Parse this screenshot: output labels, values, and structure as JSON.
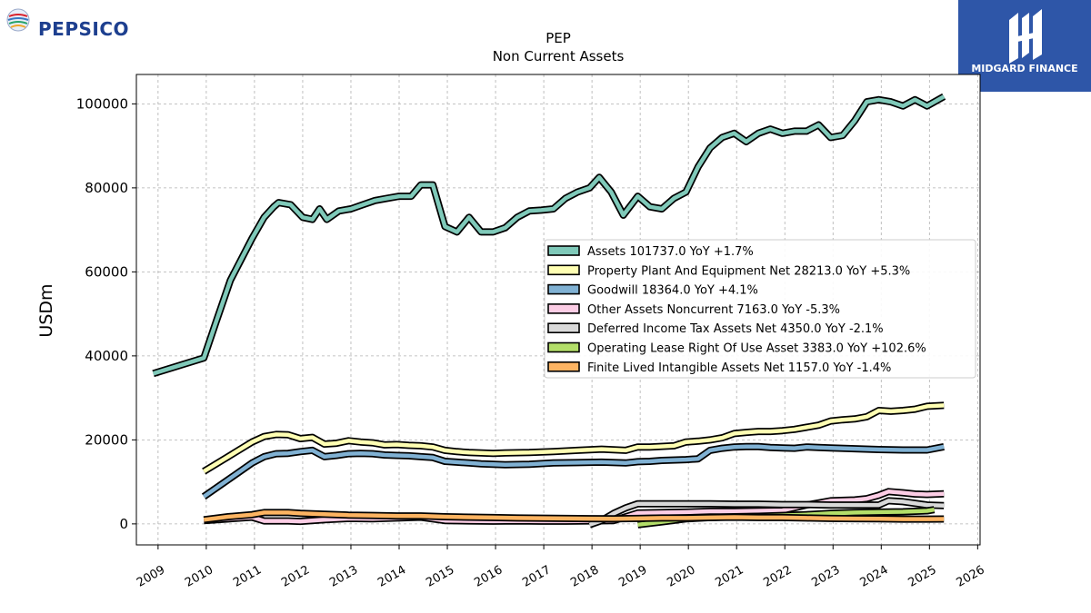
{
  "logos": {
    "left_brand": "PEPSICO",
    "right_brand": "MIDGARD FINANCE"
  },
  "chart_data": {
    "type": "line",
    "title": "PEP",
    "subtitle": "Non Current  Assets",
    "xlabel": "",
    "ylabel": "USDm",
    "xlim": [
      2008.55,
      2026.05
    ],
    "ylim": [
      -5000,
      107000
    ],
    "x_ticks": [
      2009,
      2010,
      2011,
      2012,
      2013,
      2014,
      2015,
      2016,
      2017,
      2018,
      2019,
      2020,
      2021,
      2022,
      2023,
      2024,
      2025,
      2026
    ],
    "y_ticks": [
      0,
      20000,
      40000,
      60000,
      80000,
      100000
    ],
    "y_tick_labels": [
      "0",
      "20000",
      "40000",
      "60000",
      "80000",
      "100000"
    ],
    "grid": true,
    "legend_position": "center-right",
    "series": [
      {
        "name": "Assets  101737.0 YoY +1.7%",
        "color": "#7fc9b9",
        "points": [
          [
            2008.9,
            35800
          ],
          [
            2009.95,
            39500
          ],
          [
            2010.2,
            48000
          ],
          [
            2010.5,
            58000
          ],
          [
            2010.95,
            68000
          ],
          [
            2011.2,
            73000
          ],
          [
            2011.4,
            75500
          ],
          [
            2011.5,
            76500
          ],
          [
            2011.75,
            76000
          ],
          [
            2012.0,
            73000
          ],
          [
            2012.2,
            72500
          ],
          [
            2012.35,
            75000
          ],
          [
            2012.5,
            72500
          ],
          [
            2012.75,
            74500
          ],
          [
            2013.0,
            75000
          ],
          [
            2013.25,
            76000
          ],
          [
            2013.5,
            77000
          ],
          [
            2013.75,
            77500
          ],
          [
            2014.0,
            78000
          ],
          [
            2014.25,
            78000
          ],
          [
            2014.45,
            80700
          ],
          [
            2014.7,
            80700
          ],
          [
            2014.95,
            70800
          ],
          [
            2015.2,
            69500
          ],
          [
            2015.45,
            73000
          ],
          [
            2015.7,
            69500
          ],
          [
            2015.95,
            69500
          ],
          [
            2016.2,
            70500
          ],
          [
            2016.45,
            73000
          ],
          [
            2016.7,
            74500
          ],
          [
            2016.95,
            74700
          ],
          [
            2017.2,
            75000
          ],
          [
            2017.45,
            77500
          ],
          [
            2017.7,
            79000
          ],
          [
            2017.95,
            80000
          ],
          [
            2018.15,
            82500
          ],
          [
            2018.4,
            79000
          ],
          [
            2018.65,
            73500
          ],
          [
            2018.95,
            78000
          ],
          [
            2019.2,
            75500
          ],
          [
            2019.45,
            75000
          ],
          [
            2019.7,
            77500
          ],
          [
            2019.95,
            79000
          ],
          [
            2020.2,
            85000
          ],
          [
            2020.45,
            89500
          ],
          [
            2020.7,
            92000
          ],
          [
            2020.95,
            93000
          ],
          [
            2021.2,
            91000
          ],
          [
            2021.45,
            93000
          ],
          [
            2021.7,
            94000
          ],
          [
            2021.95,
            93000
          ],
          [
            2022.2,
            93500
          ],
          [
            2022.45,
            93500
          ],
          [
            2022.7,
            95000
          ],
          [
            2022.95,
            92000
          ],
          [
            2023.2,
            92500
          ],
          [
            2023.45,
            96000
          ],
          [
            2023.7,
            100500
          ],
          [
            2023.95,
            101000
          ],
          [
            2024.2,
            100500
          ],
          [
            2024.45,
            99500
          ],
          [
            2024.7,
            101000
          ],
          [
            2024.95,
            99500
          ],
          [
            2025.3,
            101737
          ]
        ]
      },
      {
        "name": "Property Plant And Equipment Net  28213.0 YoY +5.3%",
        "color": "#ffffb3",
        "points": [
          [
            2009.95,
            12500
          ],
          [
            2010.45,
            16000
          ],
          [
            2010.95,
            19500
          ],
          [
            2011.2,
            20800
          ],
          [
            2011.45,
            21300
          ],
          [
            2011.7,
            21200
          ],
          [
            2011.95,
            20300
          ],
          [
            2012.2,
            20600
          ],
          [
            2012.45,
            19000
          ],
          [
            2012.7,
            19200
          ],
          [
            2012.95,
            19800
          ],
          [
            2013.2,
            19500
          ],
          [
            2013.45,
            19300
          ],
          [
            2013.7,
            18800
          ],
          [
            2013.95,
            18900
          ],
          [
            2014.2,
            18700
          ],
          [
            2014.45,
            18600
          ],
          [
            2014.7,
            18300
          ],
          [
            2014.95,
            17500
          ],
          [
            2015.2,
            17200
          ],
          [
            2015.45,
            17000
          ],
          [
            2015.7,
            16900
          ],
          [
            2015.95,
            16800
          ],
          [
            2016.2,
            16900
          ],
          [
            2016.7,
            17000
          ],
          [
            2017.2,
            17200
          ],
          [
            2017.7,
            17500
          ],
          [
            2018.2,
            17800
          ],
          [
            2018.7,
            17500
          ],
          [
            2018.95,
            18300
          ],
          [
            2019.2,
            18300
          ],
          [
            2019.7,
            18600
          ],
          [
            2019.95,
            19500
          ],
          [
            2020.2,
            19700
          ],
          [
            2020.45,
            20000
          ],
          [
            2020.7,
            20500
          ],
          [
            2020.95,
            21500
          ],
          [
            2021.2,
            21800
          ],
          [
            2021.45,
            22000
          ],
          [
            2021.7,
            22000
          ],
          [
            2021.95,
            22200
          ],
          [
            2022.2,
            22500
          ],
          [
            2022.45,
            23000
          ],
          [
            2022.7,
            23500
          ],
          [
            2022.95,
            24500
          ],
          [
            2023.2,
            24800
          ],
          [
            2023.45,
            25000
          ],
          [
            2023.7,
            25500
          ],
          [
            2023.95,
            27000
          ],
          [
            2024.2,
            26800
          ],
          [
            2024.45,
            27000
          ],
          [
            2024.7,
            27300
          ],
          [
            2024.95,
            28000
          ],
          [
            2025.3,
            28213
          ]
        ]
      },
      {
        "name": "Goodwill  18364.0 YoY +4.1%",
        "color": "#80b1d3",
        "points": [
          [
            2009.95,
            6500
          ],
          [
            2010.45,
            10500
          ],
          [
            2010.95,
            14500
          ],
          [
            2011.2,
            16000
          ],
          [
            2011.45,
            16700
          ],
          [
            2011.7,
            16800
          ],
          [
            2011.95,
            17200
          ],
          [
            2012.2,
            17500
          ],
          [
            2012.45,
            16000
          ],
          [
            2012.7,
            16300
          ],
          [
            2012.95,
            16700
          ],
          [
            2013.2,
            16800
          ],
          [
            2013.45,
            16700
          ],
          [
            2013.7,
            16400
          ],
          [
            2013.95,
            16300
          ],
          [
            2014.2,
            16200
          ],
          [
            2014.45,
            16000
          ],
          [
            2014.7,
            15800
          ],
          [
            2014.95,
            14900
          ],
          [
            2015.2,
            14700
          ],
          [
            2015.45,
            14500
          ],
          [
            2015.7,
            14300
          ],
          [
            2015.95,
            14200
          ],
          [
            2016.2,
            14100
          ],
          [
            2016.7,
            14200
          ],
          [
            2017.2,
            14500
          ],
          [
            2017.7,
            14600
          ],
          [
            2018.2,
            14700
          ],
          [
            2018.7,
            14500
          ],
          [
            2018.95,
            14800
          ],
          [
            2019.2,
            14900
          ],
          [
            2019.45,
            15100
          ],
          [
            2019.95,
            15300
          ],
          [
            2020.2,
            15500
          ],
          [
            2020.45,
            17500
          ],
          [
            2020.7,
            18000
          ],
          [
            2020.95,
            18300
          ],
          [
            2021.2,
            18400
          ],
          [
            2021.45,
            18400
          ],
          [
            2021.7,
            18200
          ],
          [
            2021.95,
            18100
          ],
          [
            2022.2,
            18000
          ],
          [
            2022.45,
            18300
          ],
          [
            2022.7,
            18200
          ],
          [
            2022.95,
            18100
          ],
          [
            2023.45,
            17900
          ],
          [
            2023.95,
            17700
          ],
          [
            2024.45,
            17600
          ],
          [
            2024.95,
            17600
          ],
          [
            2025.3,
            18364
          ]
        ]
      },
      {
        "name": "Other Assets Noncurrent  7163.0 YoY -5.3%",
        "color": "#fccde5",
        "points": [
          [
            2009.95,
            800
          ],
          [
            2010.95,
            1600
          ],
          [
            2011.2,
            700
          ],
          [
            2011.7,
            700
          ],
          [
            2011.95,
            600
          ],
          [
            2012.45,
            1000
          ],
          [
            2012.95,
            1300
          ],
          [
            2013.45,
            1200
          ],
          [
            2013.95,
            1400
          ],
          [
            2014.45,
            1600
          ],
          [
            2014.95,
            800
          ],
          [
            2015.45,
            700
          ],
          [
            2015.95,
            650
          ],
          [
            2016.45,
            700
          ],
          [
            2016.95,
            650
          ],
          [
            2017.45,
            650
          ],
          [
            2017.95,
            700
          ],
          [
            2018.45,
            800
          ],
          [
            2018.95,
            2600
          ],
          [
            2019.45,
            2700
          ],
          [
            2019.95,
            2800
          ],
          [
            2020.45,
            3000
          ],
          [
            2020.95,
            3000
          ],
          [
            2021.45,
            3100
          ],
          [
            2021.95,
            3200
          ],
          [
            2022.45,
            4500
          ],
          [
            2022.7,
            5000
          ],
          [
            2022.95,
            5500
          ],
          [
            2023.45,
            5700
          ],
          [
            2023.7,
            6000
          ],
          [
            2023.95,
            6800
          ],
          [
            2024.15,
            7700
          ],
          [
            2024.45,
            7400
          ],
          [
            2024.7,
            7100
          ],
          [
            2024.95,
            7000
          ],
          [
            2025.3,
            7163
          ]
        ]
      },
      {
        "name": "Deferred Income Tax Assets Net  4350.0 YoY -2.1%",
        "color": "#d9d9d9",
        "points": [
          [
            2017.95,
            -200
          ],
          [
            2018.2,
            800
          ],
          [
            2018.45,
            2500
          ],
          [
            2018.7,
            3800
          ],
          [
            2018.95,
            4800
          ],
          [
            2019.45,
            4800
          ],
          [
            2019.95,
            4800
          ],
          [
            2020.45,
            4800
          ],
          [
            2020.95,
            4700
          ],
          [
            2021.45,
            4700
          ],
          [
            2021.95,
            4600
          ],
          [
            2022.45,
            4600
          ],
          [
            2022.95,
            4500
          ],
          [
            2023.45,
            4500
          ],
          [
            2023.95,
            4500
          ],
          [
            2024.15,
            5500
          ],
          [
            2024.45,
            5300
          ],
          [
            2024.95,
            4500
          ],
          [
            2025.3,
            4350
          ]
        ]
      },
      {
        "name": "Operating Lease Right Of Use Asset  3383.0 YoY +102.6%",
        "color": "#b3de69",
        "points": [
          [
            2018.95,
            -200
          ],
          [
            2019.45,
            500
          ],
          [
            2019.95,
            1200
          ],
          [
            2020.45,
            1500
          ],
          [
            2020.95,
            1700
          ],
          [
            2021.45,
            1800
          ],
          [
            2021.95,
            2000
          ],
          [
            2022.45,
            2200
          ],
          [
            2022.95,
            2500
          ],
          [
            2023.45,
            2700
          ],
          [
            2023.95,
            2800
          ],
          [
            2024.45,
            2900
          ],
          [
            2024.95,
            3100
          ],
          [
            2025.1,
            3383
          ]
        ]
      },
      {
        "name": "Finite Lived Intangible Assets Net  1157.0 YoY -1.4%",
        "color": "#fdb462",
        "points": [
          [
            2009.95,
            1000
          ],
          [
            2010.45,
            1700
          ],
          [
            2010.95,
            2200
          ],
          [
            2011.2,
            2700
          ],
          [
            2011.45,
            2700
          ],
          [
            2011.7,
            2700
          ],
          [
            2011.95,
            2500
          ],
          [
            2012.45,
            2300
          ],
          [
            2012.95,
            2100
          ],
          [
            2013.45,
            2000
          ],
          [
            2013.95,
            1900
          ],
          [
            2014.45,
            1900
          ],
          [
            2014.95,
            1700
          ],
          [
            2015.45,
            1600
          ],
          [
            2015.95,
            1500
          ],
          [
            2016.45,
            1400
          ],
          [
            2016.95,
            1350
          ],
          [
            2017.45,
            1300
          ],
          [
            2017.95,
            1250
          ],
          [
            2018.45,
            1200
          ],
          [
            2018.95,
            1300
          ],
          [
            2019.45,
            1400
          ],
          [
            2019.95,
            1400
          ],
          [
            2020.45,
            1500
          ],
          [
            2020.95,
            1600
          ],
          [
            2021.45,
            1500
          ],
          [
            2021.95,
            1500
          ],
          [
            2022.45,
            1400
          ],
          [
            2022.95,
            1300
          ],
          [
            2023.45,
            1250
          ],
          [
            2023.95,
            1200
          ],
          [
            2024.45,
            1150
          ],
          [
            2024.95,
            1150
          ],
          [
            2025.3,
            1157
          ]
        ]
      }
    ]
  }
}
